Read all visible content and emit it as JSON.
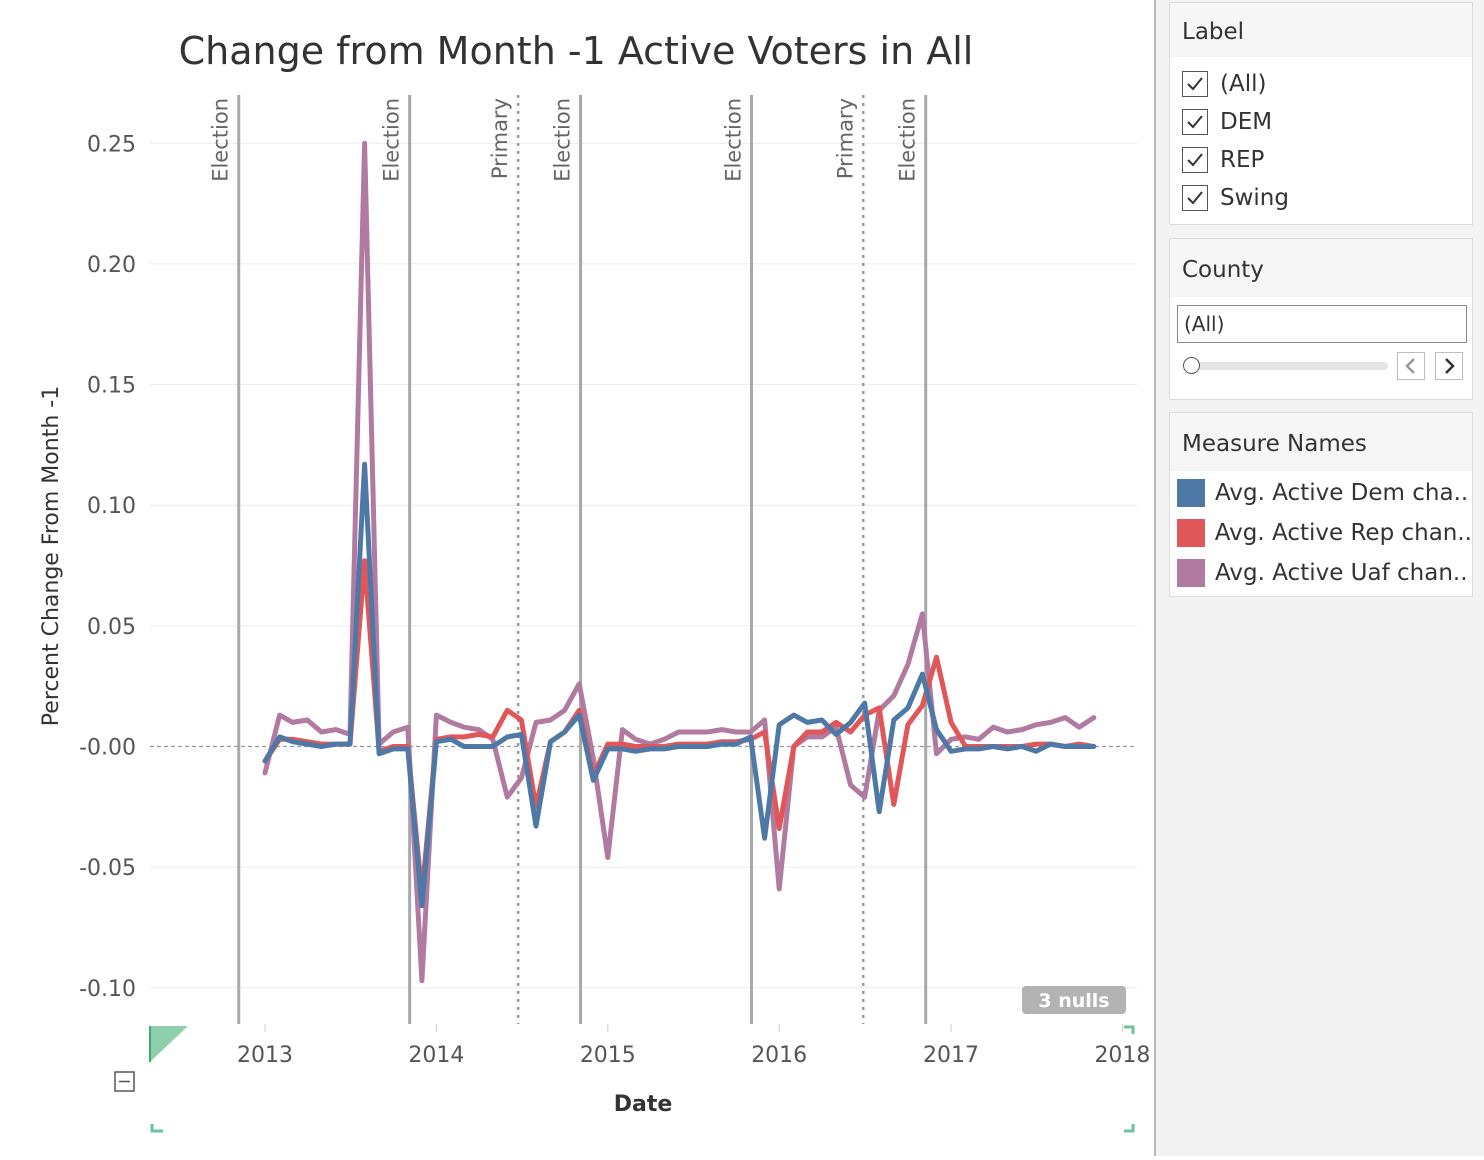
{
  "chart_data": {
    "type": "line",
    "title": "Change from Month -1 Active Voters in All",
    "xlabel": "Date",
    "ylabel": "Percent Change From Month -1",
    "x_domain": [
      "2012-05-01",
      "2018-02-01"
    ],
    "ylim": [
      -0.115,
      0.27
    ],
    "y_ticks": [
      0.25,
      0.2,
      0.15,
      0.1,
      0.05,
      0.0,
      -0.05,
      -0.1
    ],
    "y_tick_labels": [
      "0.25",
      "0.20",
      "0.15",
      "0.10",
      "0.05",
      "-0.00",
      "-0.05",
      "-0.10"
    ],
    "x_ticks": [
      "2013-01-01",
      "2014-01-01",
      "2015-01-01",
      "2016-01-01",
      "2017-01-01",
      "2018-01-01"
    ],
    "x_tick_labels": [
      "2013",
      "2014",
      "2015",
      "2016",
      "2017",
      "2018"
    ],
    "grid": true,
    "zero_line": true,
    "reference_lines": [
      {
        "date": "2012-11-06",
        "label": "Election",
        "style": "solid"
      },
      {
        "date": "2013-11-05",
        "label": "Election",
        "style": "solid"
      },
      {
        "date": "2014-06-24",
        "label": "Primary",
        "style": "dotted"
      },
      {
        "date": "2014-11-04",
        "label": "Election",
        "style": "solid"
      },
      {
        "date": "2015-11-03",
        "label": "Election",
        "style": "solid"
      },
      {
        "date": "2016-06-28",
        "label": "Primary",
        "style": "dotted"
      },
      {
        "date": "2016-11-08",
        "label": "Election",
        "style": "solid"
      }
    ],
    "nulls_badge": "3 nulls",
    "series": [
      {
        "name": "Avg. Active Uaf chan..",
        "color": "#b07aa1",
        "points": [
          [
            "2013-01-01",
            -0.011
          ],
          [
            "2013-02-01",
            0.013
          ],
          [
            "2013-03-01",
            0.01
          ],
          [
            "2013-04-01",
            0.011
          ],
          [
            "2013-05-01",
            0.006
          ],
          [
            "2013-06-01",
            0.007
          ],
          [
            "2013-07-01",
            0.005
          ],
          [
            "2013-08-01",
            0.25
          ],
          [
            "2013-09-01",
            0.001
          ],
          [
            "2013-10-01",
            0.006
          ],
          [
            "2013-11-01",
            0.008
          ],
          [
            "2013-12-01",
            -0.097
          ],
          [
            "2014-01-01",
            0.013
          ],
          [
            "2014-02-01",
            0.01
          ],
          [
            "2014-03-01",
            0.008
          ],
          [
            "2014-04-01",
            0.007
          ],
          [
            "2014-05-01",
            0.003
          ],
          [
            "2014-06-01",
            -0.021
          ],
          [
            "2014-07-01",
            -0.013
          ],
          [
            "2014-08-01",
            0.01
          ],
          [
            "2014-09-01",
            0.011
          ],
          [
            "2014-10-01",
            0.015
          ],
          [
            "2014-11-01",
            0.026
          ],
          [
            "2014-12-01",
            -0.005
          ],
          [
            "2015-01-01",
            -0.046
          ],
          [
            "2015-02-01",
            0.007
          ],
          [
            "2015-03-01",
            0.003
          ],
          [
            "2015-04-01",
            0.001
          ],
          [
            "2015-05-01",
            0.003
          ],
          [
            "2015-06-01",
            0.006
          ],
          [
            "2015-07-01",
            0.006
          ],
          [
            "2015-08-01",
            0.006
          ],
          [
            "2015-09-01",
            0.007
          ],
          [
            "2015-10-01",
            0.006
          ],
          [
            "2015-11-01",
            0.006
          ],
          [
            "2015-12-01",
            0.011
          ],
          [
            "2016-01-01",
            -0.059
          ],
          [
            "2016-02-01",
            0.0
          ],
          [
            "2016-03-01",
            0.004
          ],
          [
            "2016-04-01",
            0.004
          ],
          [
            "2016-05-01",
            0.008
          ],
          [
            "2016-06-01",
            -0.016
          ],
          [
            "2016-07-01",
            -0.021
          ],
          [
            "2016-08-01",
            0.015
          ],
          [
            "2016-09-01",
            0.021
          ],
          [
            "2016-10-01",
            0.034
          ],
          [
            "2016-11-01",
            0.055
          ],
          [
            "2016-12-01",
            -0.003
          ],
          [
            "2017-01-01",
            0.003
          ],
          [
            "2017-02-01",
            0.004
          ],
          [
            "2017-03-01",
            0.003
          ],
          [
            "2017-04-01",
            0.008
          ],
          [
            "2017-05-01",
            0.006
          ],
          [
            "2017-06-01",
            0.007
          ],
          [
            "2017-07-01",
            0.009
          ],
          [
            "2017-08-01",
            0.01
          ],
          [
            "2017-09-01",
            0.012
          ],
          [
            "2017-10-01",
            0.008
          ],
          [
            "2017-11-01",
            0.012
          ]
        ]
      },
      {
        "name": "Avg. Active Rep chan..",
        "color": "#e15759",
        "points": [
          [
            "2013-01-01",
            -0.006
          ],
          [
            "2013-02-01",
            0.003
          ],
          [
            "2013-03-01",
            0.003
          ],
          [
            "2013-04-01",
            0.002
          ],
          [
            "2013-05-01",
            0.001
          ],
          [
            "2013-06-01",
            0.001
          ],
          [
            "2013-07-01",
            0.001
          ],
          [
            "2013-08-01",
            0.077
          ],
          [
            "2013-09-01",
            -0.002
          ],
          [
            "2013-10-01",
            0.0
          ],
          [
            "2013-11-01",
            0.0
          ],
          [
            "2013-12-01",
            -0.061
          ],
          [
            "2014-01-01",
            0.003
          ],
          [
            "2014-02-01",
            0.004
          ],
          [
            "2014-03-01",
            0.004
          ],
          [
            "2014-04-01",
            0.005
          ],
          [
            "2014-05-01",
            0.004
          ],
          [
            "2014-06-01",
            0.015
          ],
          [
            "2014-07-01",
            0.011
          ],
          [
            "2014-08-01",
            -0.025
          ],
          [
            "2014-09-01",
            0.002
          ],
          [
            "2014-10-01",
            0.006
          ],
          [
            "2014-11-01",
            0.015
          ],
          [
            "2014-12-01",
            -0.012
          ],
          [
            "2015-01-01",
            0.001
          ],
          [
            "2015-02-01",
            0.001
          ],
          [
            "2015-03-01",
            0.0
          ],
          [
            "2015-04-01",
            0.0
          ],
          [
            "2015-05-01",
            0.0
          ],
          [
            "2015-06-01",
            0.001
          ],
          [
            "2015-07-01",
            0.001
          ],
          [
            "2015-08-01",
            0.001
          ],
          [
            "2015-09-01",
            0.002
          ],
          [
            "2015-10-01",
            0.002
          ],
          [
            "2015-11-01",
            0.003
          ],
          [
            "2015-12-01",
            0.006
          ],
          [
            "2016-01-01",
            -0.034
          ],
          [
            "2016-02-01",
            0.0
          ],
          [
            "2016-03-01",
            0.006
          ],
          [
            "2016-04-01",
            0.006
          ],
          [
            "2016-05-01",
            0.01
          ],
          [
            "2016-06-01",
            0.006
          ],
          [
            "2016-07-01",
            0.013
          ],
          [
            "2016-08-01",
            0.016
          ],
          [
            "2016-09-01",
            -0.024
          ],
          [
            "2016-10-01",
            0.009
          ],
          [
            "2016-11-01",
            0.017
          ],
          [
            "2016-12-01",
            0.037
          ],
          [
            "2017-01-01",
            0.01
          ],
          [
            "2017-02-01",
            0.0
          ],
          [
            "2017-03-01",
            0.0
          ],
          [
            "2017-04-01",
            0.0
          ],
          [
            "2017-05-01",
            0.0
          ],
          [
            "2017-06-01",
            0.0
          ],
          [
            "2017-07-01",
            0.001
          ],
          [
            "2017-08-01",
            0.001
          ],
          [
            "2017-09-01",
            0.0
          ],
          [
            "2017-10-01",
            0.001
          ],
          [
            "2017-11-01",
            0.0
          ]
        ]
      },
      {
        "name": "Avg. Active Dem cha..",
        "color": "#4e79a7",
        "points": [
          [
            "2013-01-01",
            -0.006
          ],
          [
            "2013-02-01",
            0.004
          ],
          [
            "2013-03-01",
            0.002
          ],
          [
            "2013-04-01",
            0.001
          ],
          [
            "2013-05-01",
            0.0
          ],
          [
            "2013-06-01",
            0.001
          ],
          [
            "2013-07-01",
            0.001
          ],
          [
            "2013-08-01",
            0.117
          ],
          [
            "2013-09-01",
            -0.003
          ],
          [
            "2013-10-01",
            -0.001
          ],
          [
            "2013-11-01",
            -0.001
          ],
          [
            "2013-12-01",
            -0.066
          ],
          [
            "2014-01-01",
            0.002
          ],
          [
            "2014-02-01",
            0.003
          ],
          [
            "2014-03-01",
            0.0
          ],
          [
            "2014-04-01",
            0.0
          ],
          [
            "2014-05-01",
            0.0
          ],
          [
            "2014-06-01",
            0.004
          ],
          [
            "2014-07-01",
            0.005
          ],
          [
            "2014-08-01",
            -0.033
          ],
          [
            "2014-09-01",
            0.002
          ],
          [
            "2014-10-01",
            0.006
          ],
          [
            "2014-11-01",
            0.013
          ],
          [
            "2014-12-01",
            -0.014
          ],
          [
            "2015-01-01",
            -0.001
          ],
          [
            "2015-02-01",
            -0.001
          ],
          [
            "2015-03-01",
            -0.002
          ],
          [
            "2015-04-01",
            -0.001
          ],
          [
            "2015-05-01",
            -0.001
          ],
          [
            "2015-06-01",
            0.0
          ],
          [
            "2015-07-01",
            0.0
          ],
          [
            "2015-08-01",
            0.0
          ],
          [
            "2015-09-01",
            0.001
          ],
          [
            "2015-10-01",
            0.001
          ],
          [
            "2015-11-01",
            0.004
          ],
          [
            "2015-12-01",
            -0.038
          ],
          [
            "2016-01-01",
            0.009
          ],
          [
            "2016-02-01",
            0.013
          ],
          [
            "2016-03-01",
            0.01
          ],
          [
            "2016-04-01",
            0.011
          ],
          [
            "2016-05-01",
            0.005
          ],
          [
            "2016-06-01",
            0.01
          ],
          [
            "2016-07-01",
            0.018
          ],
          [
            "2016-08-01",
            -0.027
          ],
          [
            "2016-09-01",
            0.011
          ],
          [
            "2016-10-01",
            0.016
          ],
          [
            "2016-11-01",
            0.03
          ],
          [
            "2016-12-01",
            0.007
          ],
          [
            "2017-01-01",
            -0.002
          ],
          [
            "2017-02-01",
            -0.001
          ],
          [
            "2017-03-01",
            -0.001
          ],
          [
            "2017-04-01",
            0.0
          ],
          [
            "2017-05-01",
            -0.001
          ],
          [
            "2017-06-01",
            0.0
          ],
          [
            "2017-07-01",
            -0.002
          ],
          [
            "2017-08-01",
            0.001
          ],
          [
            "2017-09-01",
            0.0
          ],
          [
            "2017-10-01",
            0.0
          ],
          [
            "2017-11-01",
            0.0
          ]
        ]
      }
    ]
  },
  "sidebar": {
    "label_filter": {
      "title": "Label",
      "options": [
        {
          "label": "(All)",
          "checked": true
        },
        {
          "label": "DEM",
          "checked": true
        },
        {
          "label": "REP",
          "checked": true
        },
        {
          "label": "Swing",
          "checked": true
        }
      ]
    },
    "county_filter": {
      "title": "County",
      "value": "(All)"
    },
    "legend": {
      "title": "Measure Names",
      "items": [
        {
          "label": "Avg. Active Dem cha..",
          "color": "#4e79a7"
        },
        {
          "label": "Avg. Active Rep chan..",
          "color": "#e15759"
        },
        {
          "label": "Avg. Active Uaf chan..",
          "color": "#b07aa1"
        }
      ]
    }
  }
}
